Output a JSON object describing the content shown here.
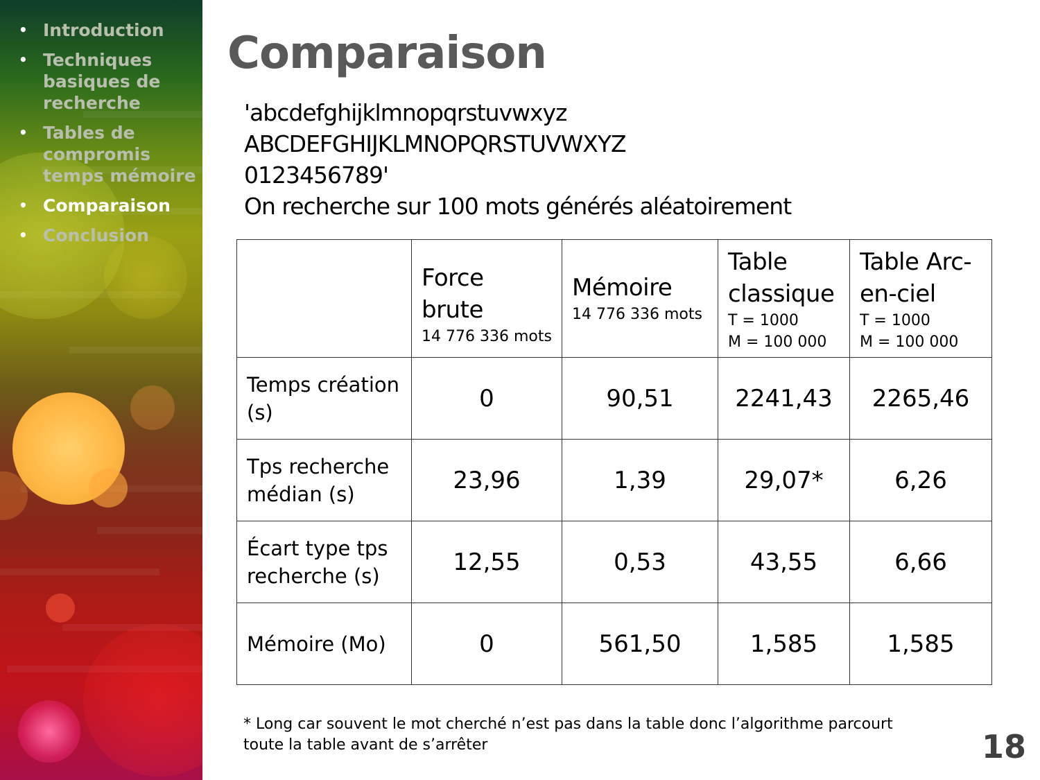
{
  "sidebar": {
    "items": [
      {
        "label": "Introduction",
        "active": false
      },
      {
        "label": "Techniques basiques de recherche",
        "active": false
      },
      {
        "label": "Tables de compromis temps mémoire",
        "active": false
      },
      {
        "label": "Comparaison",
        "active": true
      },
      {
        "label": "Conclusion",
        "active": false
      }
    ]
  },
  "slide": {
    "title": "Comparaison",
    "intro_lines": [
      "'abcdefghijklmnopqrstuvwxyz",
      "ABCDEFGHIJKLMNOPQRSTUVWXYZ",
      "0123456789'",
      "On recherche sur 100 mots générés aléatoirement"
    ],
    "page_number": "18"
  },
  "table": {
    "columns": [
      {
        "title": "Force brute",
        "sub1": "14 776 336 mots",
        "sub2": ""
      },
      {
        "title": "Mémoire",
        "sub1": "14 776 336 mots",
        "sub2": ""
      },
      {
        "title": "Table classique",
        "sub1": "T = 1000",
        "sub2": "M = 100 000"
      },
      {
        "title": "Table Arc-en-ciel",
        "sub1": "T = 1000",
        "sub2": "M = 100 000"
      }
    ],
    "rows": [
      {
        "label": "Temps création (s)",
        "values": [
          "0",
          "90,51",
          "2241,43",
          "2265,46"
        ]
      },
      {
        "label": "Tps recherche médian (s)",
        "values": [
          "23,96",
          "1,39",
          "29,07*",
          "6,26"
        ]
      },
      {
        "label": "Écart type tps recherche (s)",
        "values": [
          "12,55",
          "0,53",
          "43,55",
          "6,66"
        ]
      },
      {
        "label": "Mémoire (Mo)",
        "values": [
          "0",
          "561,50",
          "1,585",
          "1,585"
        ]
      }
    ]
  },
  "footnote": "* Long car souvent le mot cherché n’est pas dans la table donc l’algorithme parcourt toute la table avant de s’arrêter",
  "colors": {
    "title": "#595959",
    "nav_inactive": "#b9bfae",
    "nav_active": "#ffffff"
  }
}
